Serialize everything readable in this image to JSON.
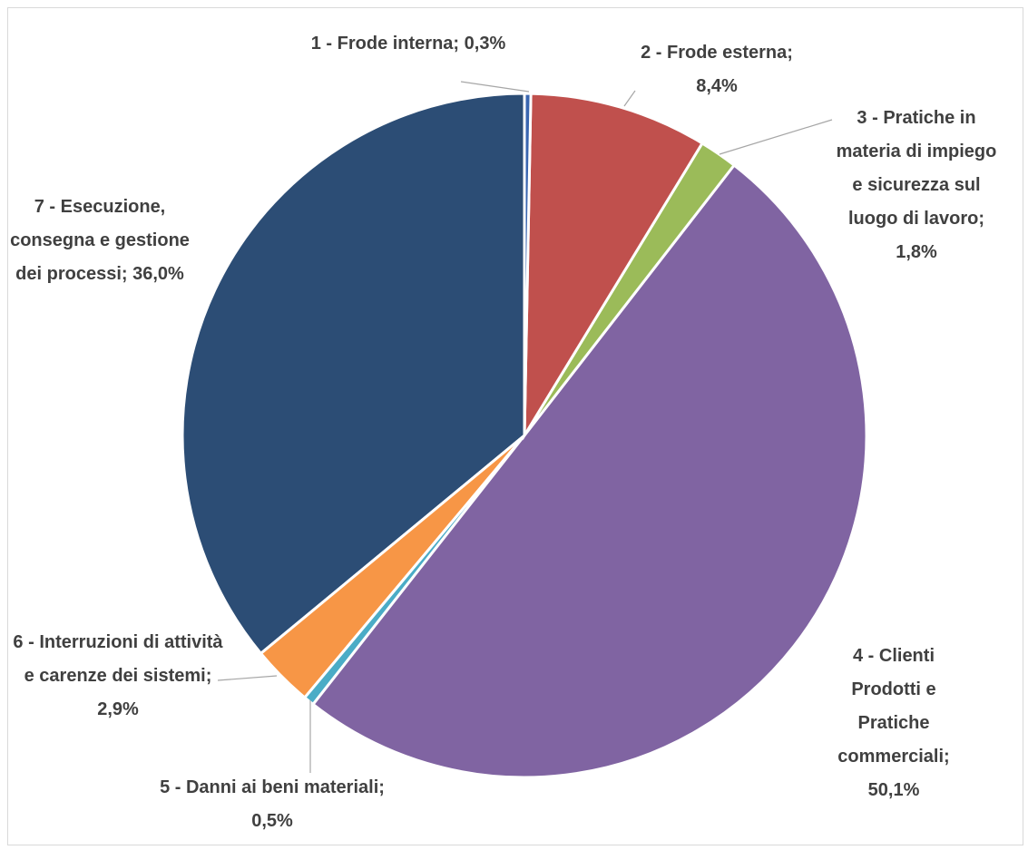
{
  "chart_data": {
    "type": "pie",
    "categories": [
      "1 - Frode interna;",
      "2 - Frode esterna;",
      "3 - Pratiche in materia di impiego e sicurezza sul luogo di lavoro;",
      "4 - Clienti Prodotti e Pratiche commerciali;",
      "5 - Danni ai beni materiali;",
      "6 - Interruzioni di attività e carenze dei sistemi;",
      "7 - Esecuzione, consegna e gestione dei processi;"
    ],
    "values": [
      0.3,
      8.4,
      1.8,
      50.1,
      0.5,
      2.9,
      36.0
    ],
    "value_labels": [
      "0,3%",
      "8,4%",
      "1,8%",
      "50,1%",
      "0,5%",
      "2,9%",
      "36,0%"
    ],
    "colors": [
      "#3a66b0",
      "#c0504d",
      "#9bbb59",
      "#8064a2",
      "#4bacc6",
      "#f79646",
      "#2c4d75"
    ]
  }
}
